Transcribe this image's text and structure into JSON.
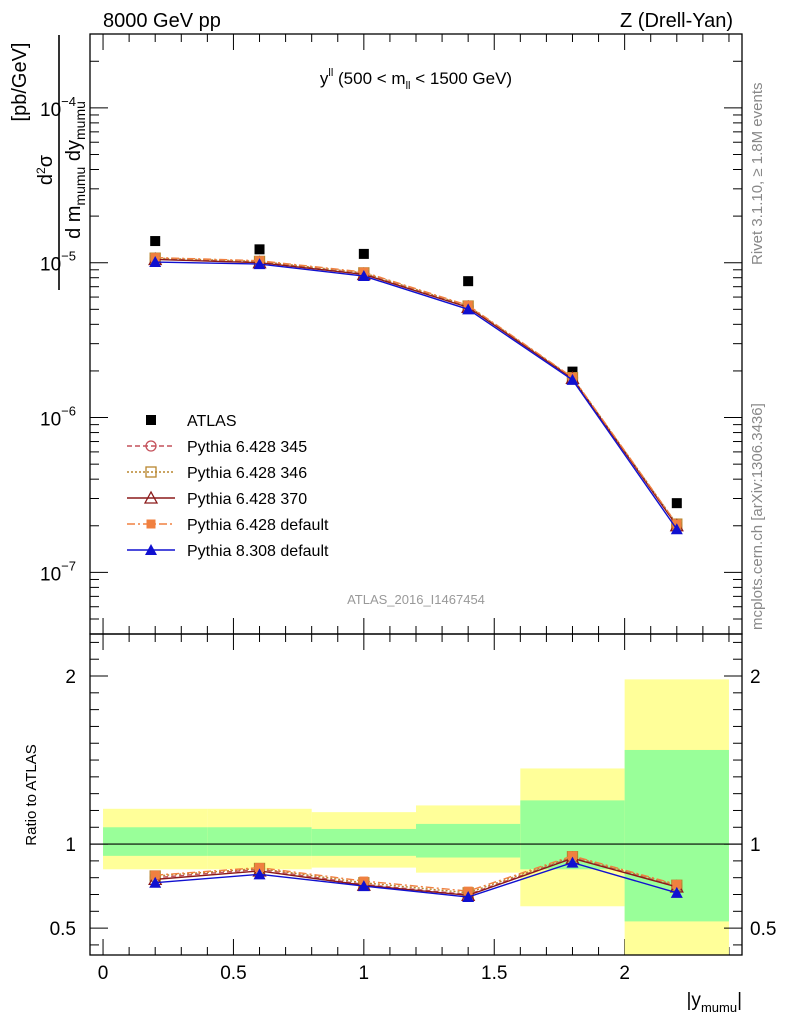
{
  "header": {
    "left": "8000 GeV pp",
    "right": "Z (Drell-Yan)"
  },
  "side": {
    "rivet": "Rivet 3.1.10, ≥ 1.8M events",
    "mcplots": "mcplots.cern.ch [arXiv:1306.3436]"
  },
  "analysis_label": "ATLAS_2016_I1467454",
  "legend": [
    "ATLAS",
    "Pythia 6.428 345",
    "Pythia 6.428 346",
    "Pythia 6.428 370",
    "Pythia 6.428 default",
    "Pythia 8.308 default"
  ],
  "colors": {
    "ATLAS": "#000000",
    "p345": "#c4505a",
    "p346": "#b8862e",
    "p370": "#8b1a1a",
    "pdef6": "#f08040",
    "pdef8": "#1010d0",
    "band_inner": "#99ff99",
    "band_outer": "#ffff99"
  },
  "chart_data": [
    {
      "type": "scatter",
      "panel": "main",
      "title": "y^ll (500 < m_ll < 1500 GeV)",
      "ylabel": "d²σ / d m_mumu dy_mumu [pb/GeV]",
      "yscale": "log",
      "ylim": [
        4e-08,
        0.0003
      ],
      "xlim": [
        -0.05,
        2.45
      ],
      "yticks": [
        {
          "base": "10",
          "exp": "−4"
        },
        {
          "base": "10",
          "exp": "−5"
        },
        {
          "base": "10",
          "exp": "−6"
        },
        {
          "base": "10",
          "exp": "−7"
        }
      ],
      "x": [
        0.2,
        0.6,
        1.0,
        1.4,
        1.8,
        2.2
      ],
      "series": [
        {
          "name": "ATLAS",
          "values": [
            1.38e-05,
            1.22e-05,
            1.14e-05,
            7.6e-06,
            1.98e-06,
            2.8e-07
          ]
        },
        {
          "name": "Pythia 6.428 345",
          "values": [
            1.06e-05,
            1.01e-05,
            8.5e-06,
            5.2e-06,
            1.8e-06,
            2e-07
          ]
        },
        {
          "name": "Pythia 6.428 346",
          "values": [
            1.07e-05,
            1.02e-05,
            8.6e-06,
            5.25e-06,
            1.81e-06,
            2.05e-07
          ]
        },
        {
          "name": "Pythia 6.428 370",
          "values": [
            1.05e-05,
            1e-05,
            8.4e-06,
            5.15e-06,
            1.79e-06,
            2e-07
          ]
        },
        {
          "name": "Pythia 6.428 default",
          "values": [
            1.08e-05,
            1.03e-05,
            8.7e-06,
            5.3e-06,
            1.82e-06,
            2.05e-07
          ]
        },
        {
          "name": "Pythia 8.308 default",
          "values": [
            1.01e-05,
            9.8e-06,
            8.2e-06,
            5e-06,
            1.75e-06,
            1.9e-07
          ]
        }
      ]
    },
    {
      "type": "line",
      "panel": "ratio",
      "ylabel": "Ratio to ATLAS",
      "xlabel": "|y_mumu|",
      "ylim": [
        0.34,
        2.25
      ],
      "xlim": [
        -0.05,
        2.45
      ],
      "xticks": [
        "0",
        "0.5",
        "1",
        "1.5",
        "2"
      ],
      "yticks": [
        "0.5",
        "1",
        "2"
      ],
      "bins": [
        [
          0,
          0.4
        ],
        [
          0.4,
          0.8
        ],
        [
          0.8,
          1.2
        ],
        [
          1.2,
          1.6
        ],
        [
          1.6,
          2.0
        ],
        [
          2.0,
          2.4
        ]
      ],
      "band_inner": [
        [
          0.93,
          1.1
        ],
        [
          0.93,
          1.1
        ],
        [
          0.93,
          1.09
        ],
        [
          0.92,
          1.12
        ],
        [
          0.85,
          1.26
        ],
        [
          0.54,
          1.56
        ]
      ],
      "band_outer": [
        [
          0.85,
          1.21
        ],
        [
          0.85,
          1.21
        ],
        [
          0.86,
          1.19
        ],
        [
          0.83,
          1.23
        ],
        [
          0.63,
          1.45
        ],
        [
          0.34,
          1.98
        ]
      ],
      "x": [
        0.2,
        0.6,
        1.0,
        1.4,
        1.8,
        2.2
      ],
      "series": [
        {
          "name": "Pythia 6.428 345",
          "values": [
            0.8,
            0.85,
            0.76,
            0.7,
            0.92,
            0.75
          ]
        },
        {
          "name": "Pythia 6.428 346",
          "values": [
            0.81,
            0.855,
            0.77,
            0.71,
            0.925,
            0.755
          ]
        },
        {
          "name": "Pythia 6.428 370",
          "values": [
            0.79,
            0.84,
            0.755,
            0.695,
            0.915,
            0.745
          ]
        },
        {
          "name": "Pythia 6.428 default",
          "values": [
            0.815,
            0.86,
            0.78,
            0.72,
            0.93,
            0.76
          ]
        },
        {
          "name": "Pythia 8.308 default",
          "values": [
            0.77,
            0.82,
            0.75,
            0.685,
            0.89,
            0.71
          ]
        }
      ]
    }
  ]
}
